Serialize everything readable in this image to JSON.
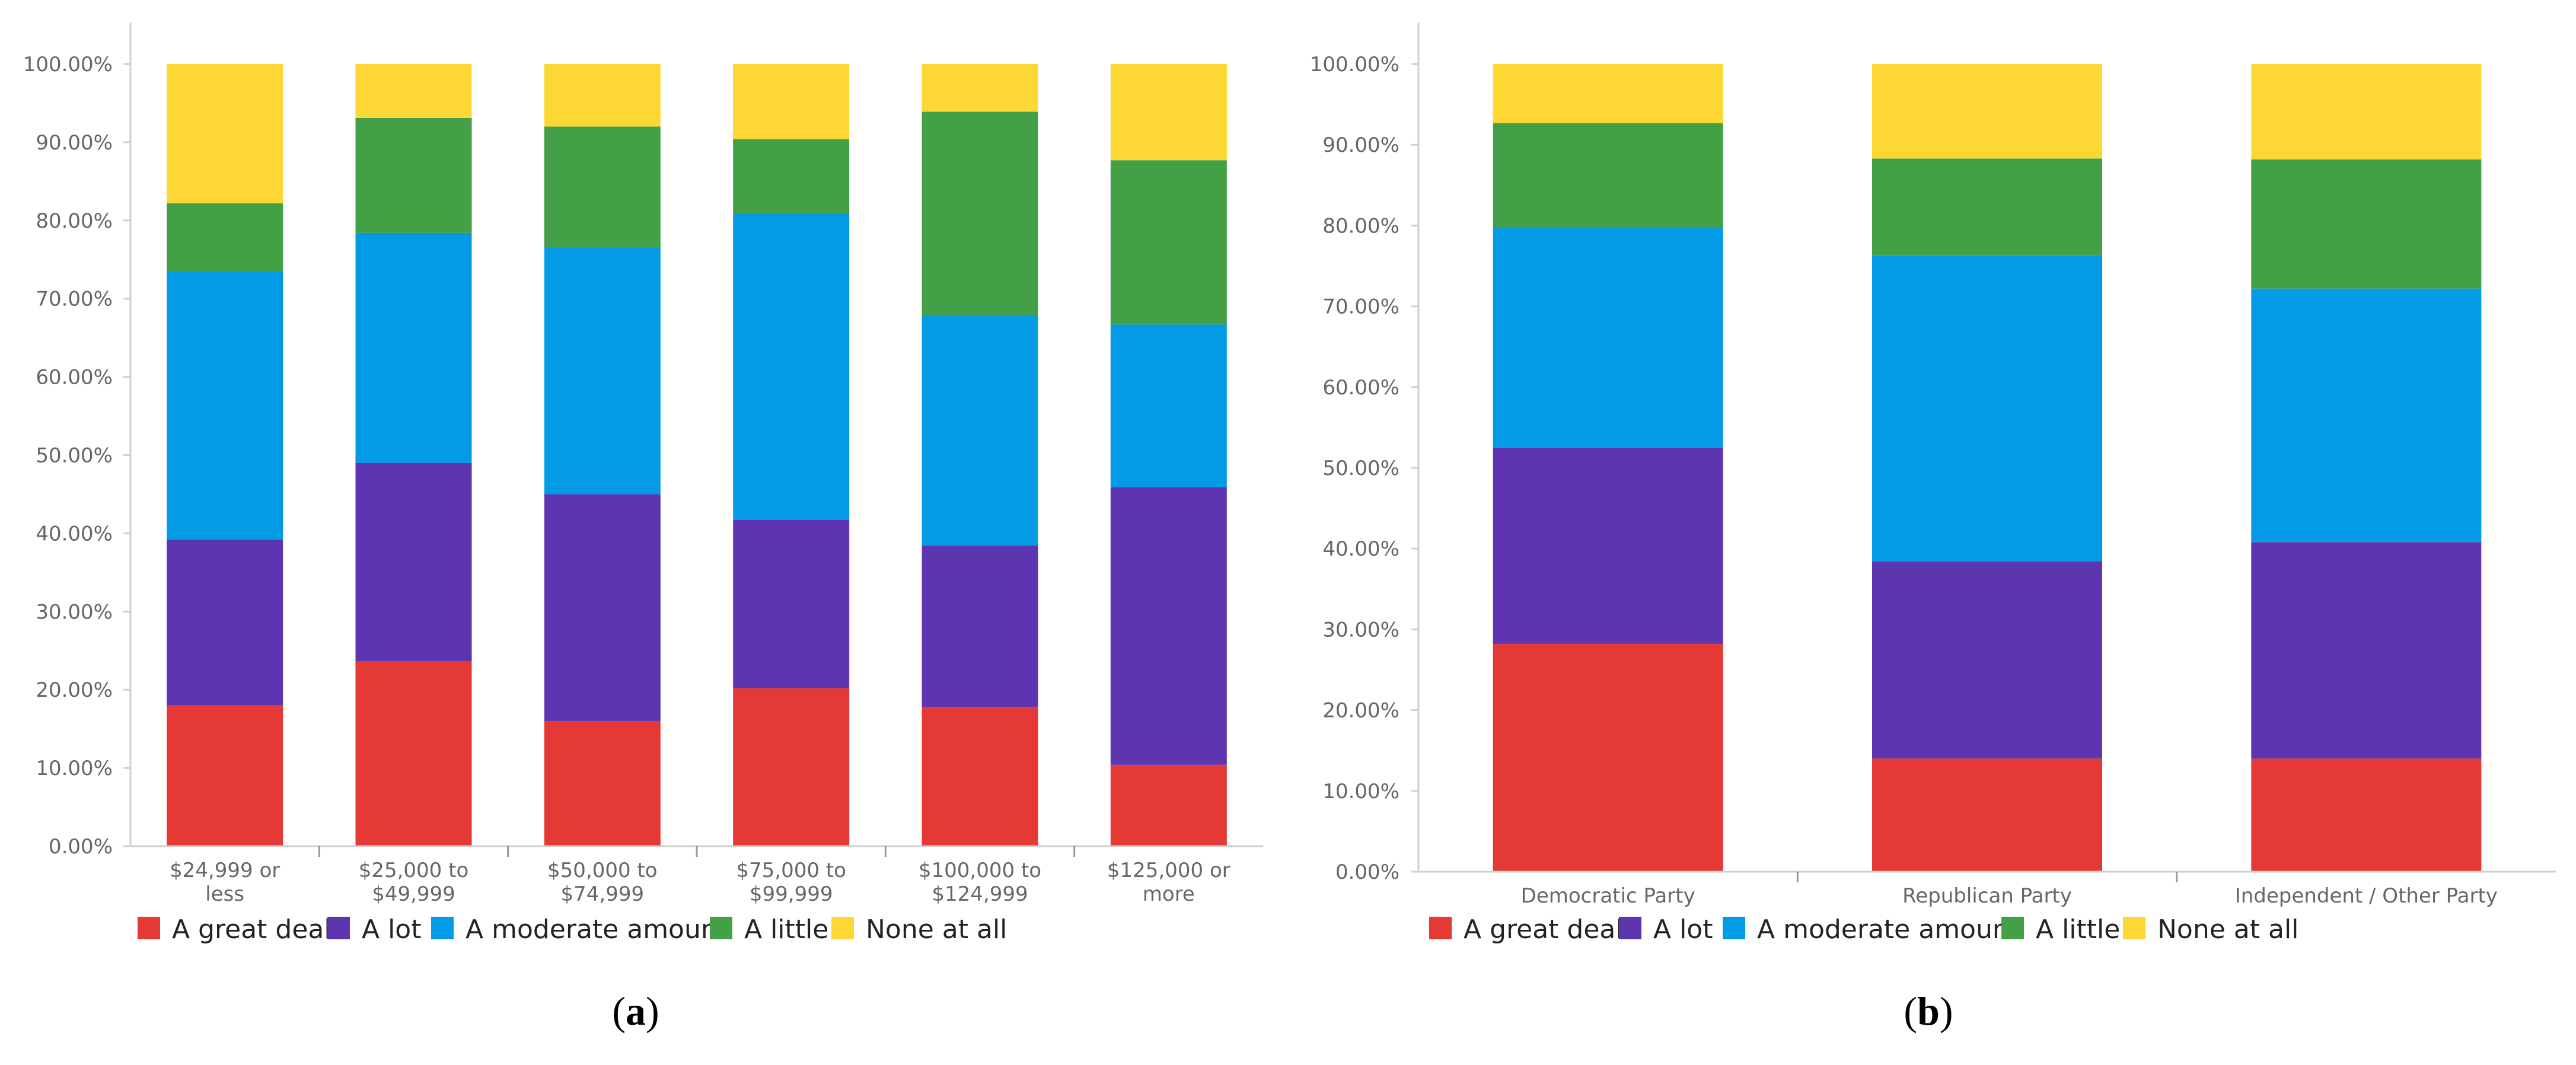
{
  "colors": {
    "a_great_deal": "#e53935",
    "a_lot": "#5e35b1",
    "a_moderate_amount": "#039be5",
    "a_little": "#43a047",
    "none_at_all": "#fdd835"
  },
  "chart_data": [
    {
      "type": "bar",
      "stacked": true,
      "panel": "a",
      "caption_label": "a",
      "ylim": [
        0,
        100
      ],
      "y_ticks": [
        "0.00%",
        "10.00%",
        "20.00%",
        "30.00%",
        "40.00%",
        "50.00%",
        "60.00%",
        "70.00%",
        "80.00%",
        "90.00%",
        "100.00%"
      ],
      "categories": [
        [
          "$24,999 or",
          "less"
        ],
        [
          "$25,000 to",
          "$49,999"
        ],
        [
          "$50,000 to",
          "$74,999"
        ],
        [
          "$75,000 to",
          "$99,999"
        ],
        [
          "$100,000 to",
          "$124,999"
        ],
        [
          "$125,000 or",
          "more"
        ]
      ],
      "series": [
        {
          "name": "A great deal",
          "color_key": "a_great_deal",
          "values": [
            18.0,
            23.6,
            16.0,
            20.2,
            17.8,
            10.4
          ]
        },
        {
          "name": "A lot",
          "color_key": "a_lot",
          "values": [
            21.2,
            25.4,
            29.0,
            21.5,
            20.6,
            35.5
          ]
        },
        {
          "name": "A moderate amount",
          "color_key": "a_moderate_amount",
          "values": [
            34.3,
            29.4,
            31.5,
            39.2,
            29.5,
            20.8
          ]
        },
        {
          "name": "A little",
          "color_key": "a_little",
          "values": [
            8.7,
            14.7,
            15.5,
            9.5,
            26.0,
            21.0
          ]
        },
        {
          "name": "None at all",
          "color_key": "none_at_all",
          "values": [
            17.8,
            6.9,
            8.0,
            9.6,
            6.1,
            12.3
          ]
        }
      ]
    },
    {
      "type": "bar",
      "stacked": true,
      "panel": "b",
      "caption_label": "b",
      "ylim": [
        0,
        100
      ],
      "y_ticks": [
        "0.00%",
        "10.00%",
        "20.00%",
        "30.00%",
        "40.00%",
        "50.00%",
        "60.00%",
        "70.00%",
        "80.00%",
        "90.00%",
        "100.00%"
      ],
      "categories": [
        [
          "Democratic Party"
        ],
        [
          "Republican Party"
        ],
        [
          "Independent / Other Party"
        ]
      ],
      "series": [
        {
          "name": "A great deal",
          "color_key": "a_great_deal",
          "values": [
            28.2,
            14.0,
            14.0
          ]
        },
        {
          "name": "A lot",
          "color_key": "a_lot",
          "values": [
            24.3,
            24.4,
            26.8
          ]
        },
        {
          "name": "A moderate amount",
          "color_key": "a_moderate_amount",
          "values": [
            27.2,
            37.9,
            31.4
          ]
        },
        {
          "name": "A little",
          "color_key": "a_little",
          "values": [
            13.0,
            12.0,
            16.0
          ]
        },
        {
          "name": "None at all",
          "color_key": "none_at_all",
          "values": [
            7.3,
            11.7,
            11.8
          ]
        }
      ]
    }
  ]
}
